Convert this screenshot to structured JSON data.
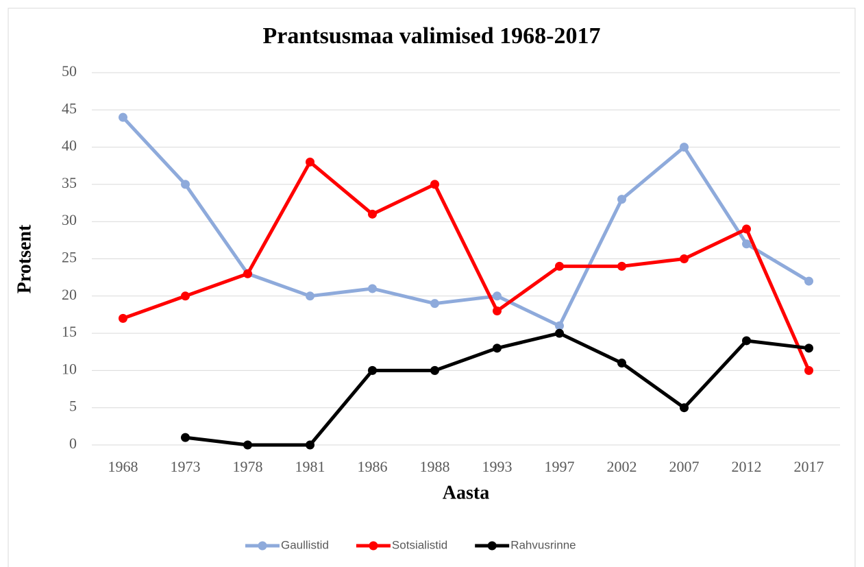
{
  "chart_data": {
    "type": "line",
    "title": "Prantsusmaa valimised 1968-2017",
    "x_label": "Aasta",
    "y_label": "Protsent",
    "categories": [
      "1968",
      "1973",
      "1978",
      "1981",
      "1986",
      "1988",
      "1993",
      "1997",
      "2002",
      "2007",
      "2012",
      "2017"
    ],
    "series": [
      {
        "name": "Gaullistid",
        "color": "#8eaadb",
        "values": [
          44,
          35,
          23,
          20,
          21,
          19,
          20,
          16,
          33,
          40,
          27,
          22
        ]
      },
      {
        "name": "Sotsialistid",
        "color": "#ff0000",
        "values": [
          17,
          20,
          23,
          38,
          31,
          35,
          18,
          24,
          24,
          25,
          29,
          10
        ]
      },
      {
        "name": "Rahvusrinne",
        "color": "#000000",
        "values": [
          null,
          1,
          0,
          0,
          10,
          10,
          13,
          15,
          11,
          5,
          14,
          13
        ]
      }
    ],
    "ylim": [
      0,
      50
    ],
    "yticks": [
      0,
      5,
      10,
      15,
      20,
      25,
      30,
      35,
      40,
      45,
      50
    ],
    "grid": true,
    "legend": "bottom"
  }
}
